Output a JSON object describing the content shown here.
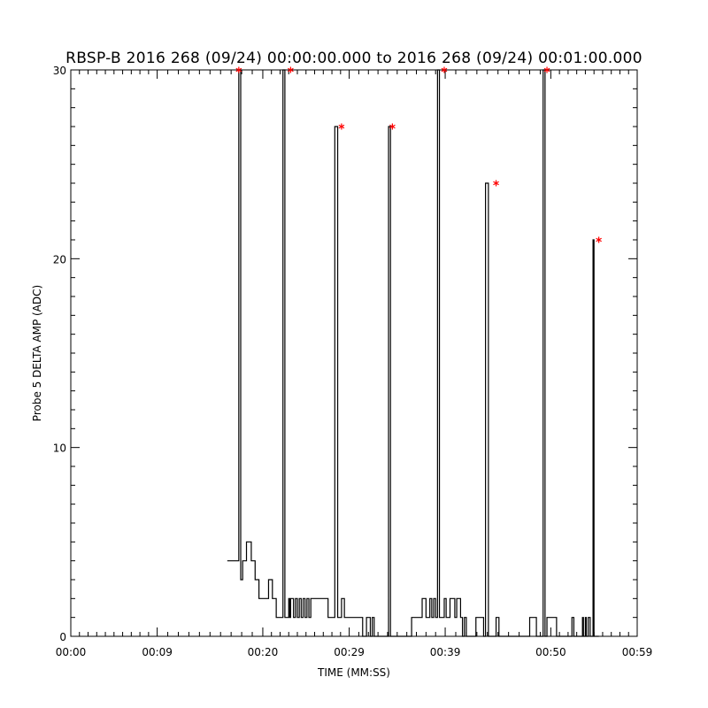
{
  "chart_data": {
    "type": "line",
    "title": "RBSP-B 2016 268 (09/24) 00:00:00.000 to 2016 268 (09/24) 00:01:00.000",
    "xlabel": "TIME (MM:SS)",
    "ylabel": "Probe 5 DELTA AMP (ADC)",
    "xlim": [
      0,
      59
    ],
    "ylim": [
      0,
      30
    ],
    "x_ticks": [
      0,
      9,
      20,
      29,
      39,
      50,
      59
    ],
    "x_tick_labels": [
      "00:00",
      "00:09",
      "00:20",
      "00:29",
      "00:39",
      "00:50",
      "00:59"
    ],
    "y_ticks": [
      0,
      10,
      20,
      30
    ],
    "y_tick_labels": [
      "0",
      "10",
      "20",
      "30"
    ],
    "series": [
      {
        "color": "#000000",
        "x": [
          16.3,
          17.3,
          17.5,
          17.7,
          17.9,
          18.1,
          18.3,
          18.8,
          19.0,
          19.2,
          19.6,
          19.8,
          20.0,
          20.2,
          20.6,
          21.0,
          21.2,
          21.4,
          21.6,
          21.9,
          22.1,
          22.3,
          22.7,
          22.8,
          22.9,
          23.2,
          23.4,
          23.6,
          23.8,
          24.0,
          24.2,
          24.4,
          24.6,
          24.8,
          25.0,
          25.2,
          25.6,
          26.0,
          26.4,
          26.8,
          27.5,
          27.8,
          28.2,
          28.5,
          29.2,
          29.8,
          30.0,
          30.4,
          30.8,
          31.2,
          31.4,
          31.6,
          33.0,
          33.1,
          33.3,
          33.5,
          35.5,
          36.4,
          36.6,
          37.0,
          37.4,
          37.6,
          37.8,
          38.0,
          38.2,
          38.4,
          38.6,
          38.9,
          39.1,
          39.5,
          40.0,
          40.2,
          40.6,
          40.8,
          41.0,
          41.2,
          42.0,
          42.2,
          43.0,
          43.2,
          43.5,
          44.0,
          44.1,
          44.3,
          44.6,
          47.5,
          47.8,
          48.5,
          49.0,
          49.2,
          49.4,
          49.6,
          50.1,
          50.3,
          50.6,
          51.0,
          52.2,
          52.4,
          53.3,
          53.4,
          53.6,
          53.7,
          53.9,
          54.1,
          54.4,
          54.5,
          54.7,
          55.0
        ],
        "y": [
          4,
          4,
          30,
          3,
          4,
          4,
          5,
          4,
          4,
          3,
          2,
          2,
          2,
          2,
          3,
          2,
          2,
          1,
          1,
          1,
          30,
          1,
          2,
          1,
          2,
          1,
          2,
          1,
          2,
          1,
          2,
          1,
          2,
          1,
          2,
          2,
          2,
          2,
          2,
          1,
          27,
          1,
          2,
          1,
          1,
          1,
          1,
          0,
          1,
          0,
          1,
          0,
          0,
          27,
          0,
          0,
          1,
          1,
          2,
          1,
          2,
          1,
          2,
          1,
          30,
          1,
          1,
          2,
          1,
          2,
          1,
          2,
          1,
          0,
          1,
          0,
          0,
          1,
          0,
          24,
          0,
          0,
          0,
          1,
          0,
          0,
          1,
          0,
          0,
          30,
          0,
          1,
          1,
          1,
          0,
          0,
          1,
          0,
          1,
          0,
          1,
          0,
          1,
          0,
          21,
          0,
          0,
          0
        ]
      }
    ],
    "markers": {
      "symbol": "*",
      "color": "#ff0000",
      "x": [
        17.5,
        22.9,
        28.2,
        33.5,
        38.9,
        44.3,
        49.6,
        55.0
      ],
      "y": [
        30,
        30,
        27,
        27,
        30,
        24,
        30,
        21
      ]
    }
  }
}
